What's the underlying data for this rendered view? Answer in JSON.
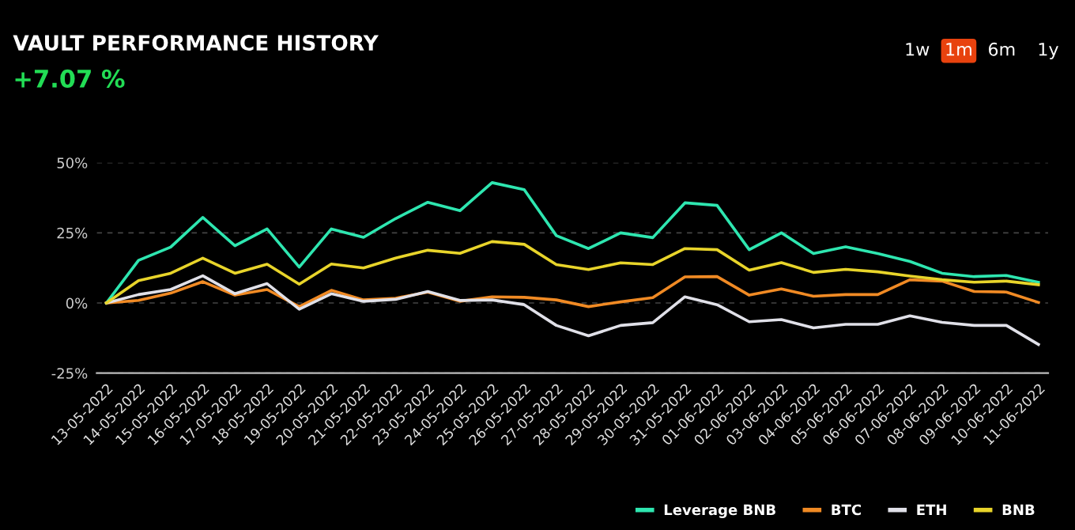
{
  "chart_data": {
    "type": "line",
    "title": "VAULT PERFORMANCE HISTORY",
    "subtitle": "+7.07 %",
    "annotations": [
      "1w",
      "1m",
      "6m",
      "1y"
    ],
    "categories": [
      "13-05-2022",
      "14-05-2022",
      "15-05-2022",
      "16-05-2022",
      "17-05-2022",
      "18-05-2022",
      "19-05-2022",
      "20-05-2022",
      "21-05-2022",
      "22-05-2022",
      "23-05-2022",
      "24-05-2022",
      "25-05-2022",
      "26-05-2022",
      "27-05-2022",
      "28-05-2022",
      "29-05-2022",
      "30-05-2022",
      "31-05-2022",
      "01-06-2022",
      "02-06-2022",
      "03-06-2022",
      "04-06-2022",
      "05-06-2022",
      "06-06-2022",
      "07-06-2022",
      "08-06-2022",
      "09-06-2022",
      "10-06-2022",
      "11-06-2022"
    ],
    "series": [
      {
        "name": "Leverage BNB",
        "color": "#2ee6b0",
        "values": [
          0,
          15.2,
          19.9,
          30.5,
          20.4,
          26.4,
          12.8,
          26.4,
          23.4,
          30.1,
          35.9,
          32.9,
          42.9,
          40.4,
          24,
          19.4,
          25,
          23.3,
          35.7,
          34.8,
          19,
          25,
          17.6,
          20,
          17.6,
          14.8,
          10.6,
          9.4,
          9.8,
          7.4
        ]
      },
      {
        "name": "BTC",
        "color": "#f08a24",
        "values": [
          0,
          0.9,
          3.5,
          7.6,
          2.8,
          4.8,
          -1.3,
          4.5,
          1.1,
          1.7,
          3.9,
          0.6,
          2.2,
          2,
          1.1,
          -1.3,
          0.4,
          1.9,
          9.3,
          9.4,
          2.8,
          5,
          2.4,
          3,
          3,
          8.3,
          7.8,
          4.1,
          3.9,
          0.2
        ]
      },
      {
        "name": "ETH",
        "color": "#e0e0e8",
        "values": [
          0,
          3,
          4.8,
          9.7,
          3.3,
          6.9,
          -2.2,
          3.3,
          0.6,
          1.3,
          4.1,
          0.9,
          1.1,
          -0.6,
          -8,
          -11.7,
          -8,
          -7,
          2.2,
          -0.6,
          -6.7,
          -5.9,
          -8.9,
          -7.6,
          -7.6,
          -4.6,
          -6.9,
          -8,
          -8,
          -14.8
        ]
      },
      {
        "name": "BNB",
        "color": "#e8d42a",
        "values": [
          0,
          8,
          10.6,
          16,
          10.6,
          13.8,
          6.7,
          13.9,
          12.5,
          16,
          18.8,
          17.7,
          21.9,
          20.9,
          13.7,
          11.9,
          14.3,
          13.7,
          19.4,
          19,
          11.7,
          14.4,
          10.9,
          12,
          11.1,
          9.6,
          8.3,
          7.4,
          7.8,
          6.5
        ]
      }
    ],
    "ylim": [
      -25,
      50
    ],
    "yticks": [
      {
        "value": -25,
        "label": "-25%"
      },
      {
        "value": 0,
        "label": "0%"
      },
      {
        "value": 25,
        "label": "25%"
      },
      {
        "value": 50,
        "label": "50%"
      }
    ],
    "grid": "y",
    "legend": "bottom right",
    "marker": "none",
    "line_style": "solid"
  }
}
